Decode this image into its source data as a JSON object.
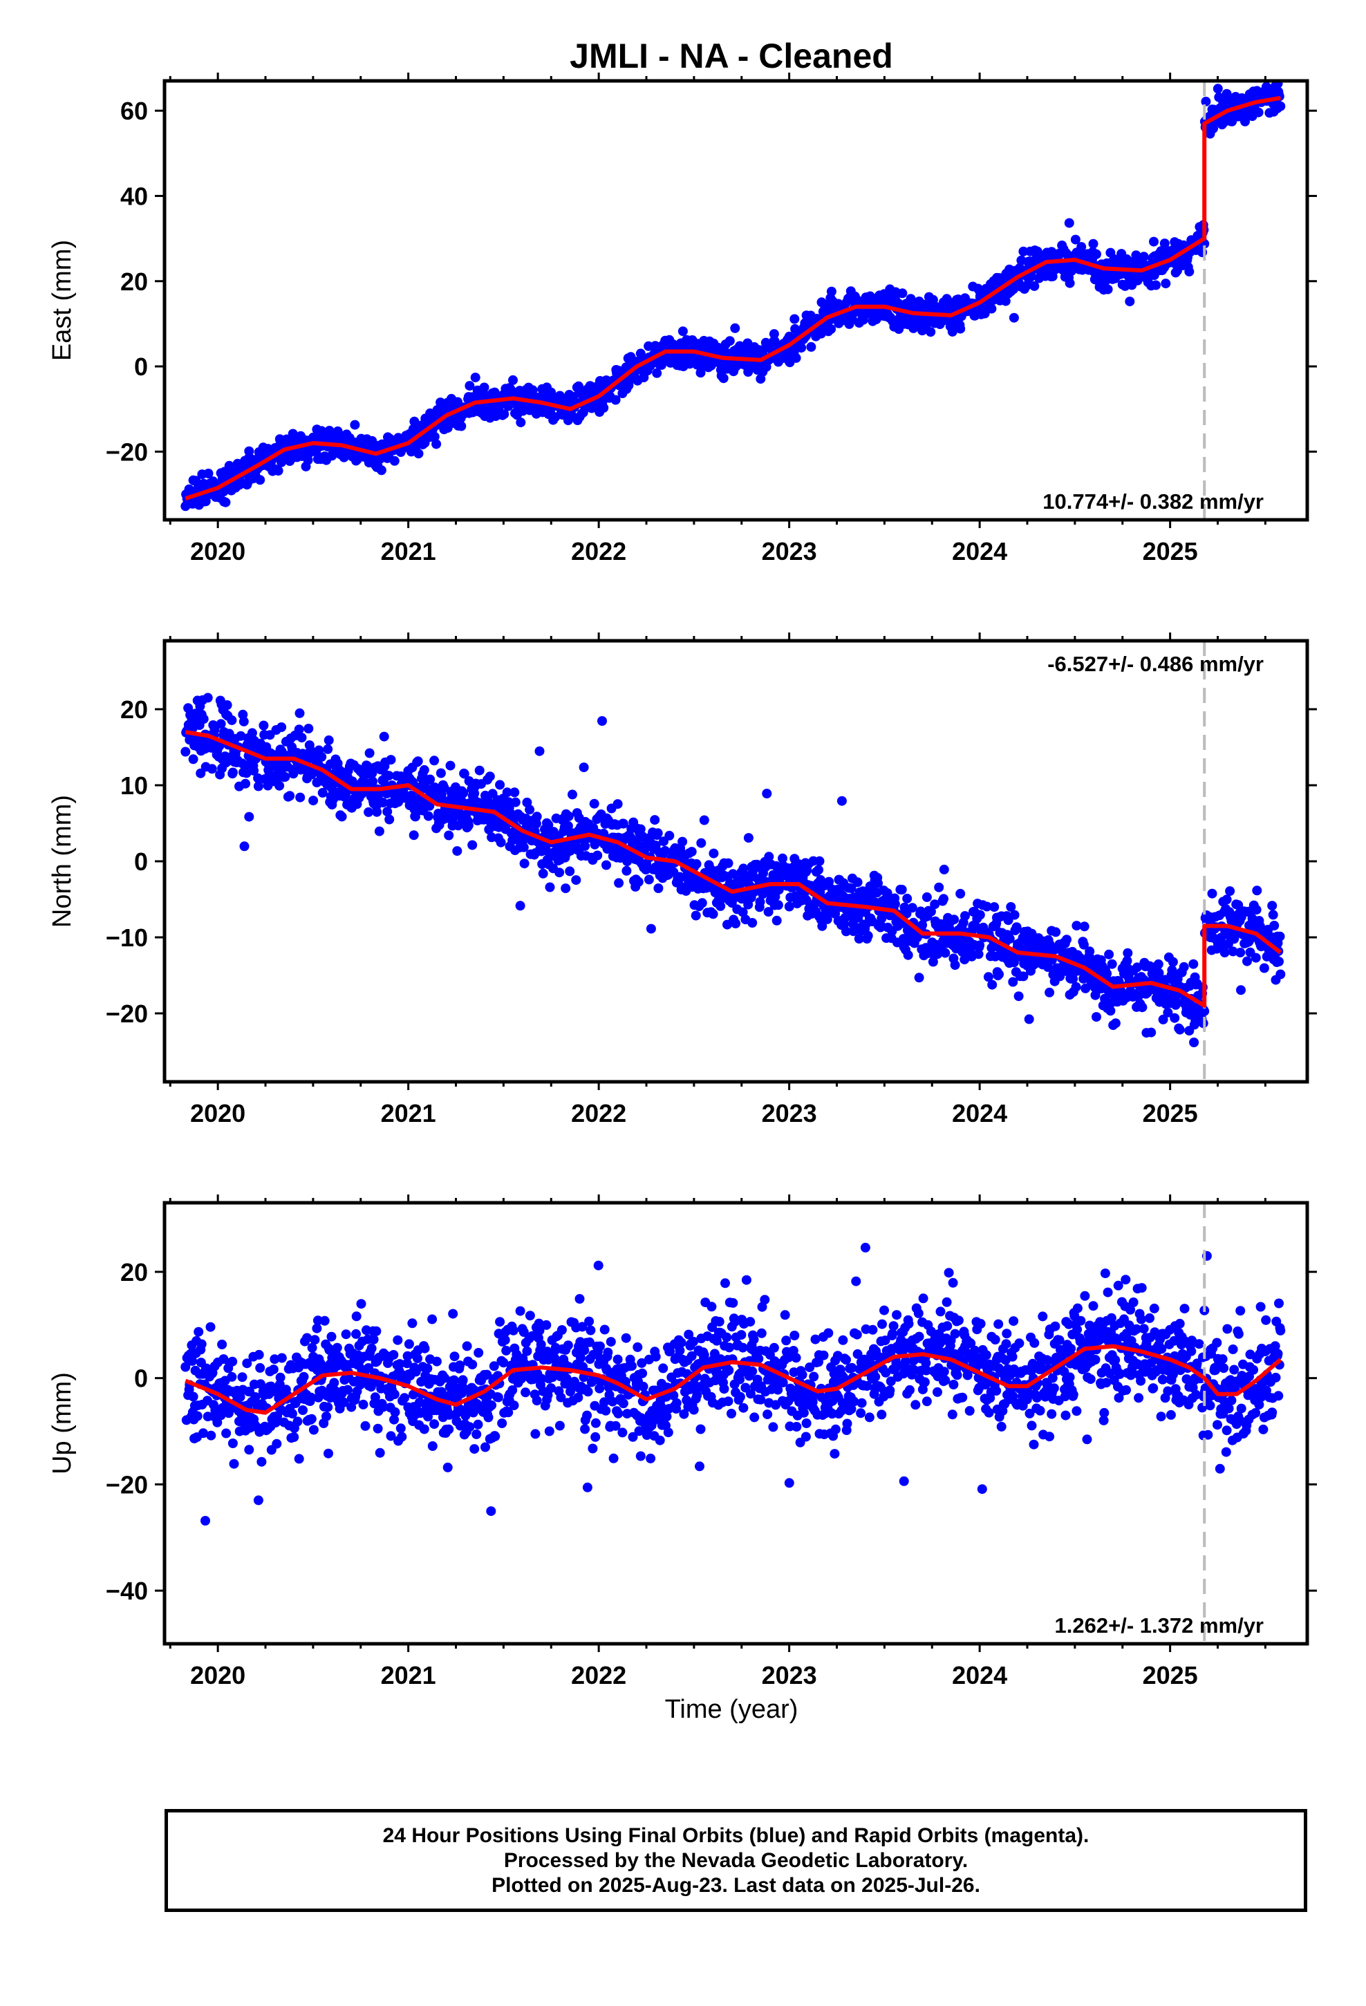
{
  "title": "JMLI  - NA - Cleaned",
  "x_axis_label": "Time (year)",
  "footer": {
    "line1": "24 Hour Positions Using Final Orbits (blue) and Rapid Orbits (magenta).",
    "line2": "Processed by the Nevada Geodetic Laboratory.",
    "line3": "Plotted on 2025-Aug-23. Last data on 2025-Jul-26."
  },
  "colors": {
    "data_points": "#0000ff",
    "model_fit": "#ff0000",
    "equipment_change_line": "#bbbbbb",
    "frame": "#000000"
  },
  "chart_data": [
    {
      "type": "scatter",
      "name": "east",
      "ylabel": "East (mm)",
      "xlim": [
        2019.72,
        2025.72
      ],
      "ylim": [
        -36,
        67
      ],
      "x_ticks": [
        2020,
        2021,
        2022,
        2023,
        2024,
        2025
      ],
      "x_tick_labels": [
        "2020",
        "2021",
        "2022",
        "2023",
        "2024",
        "2025"
      ],
      "y_ticks": [
        -20,
        0,
        20,
        40,
        60
      ],
      "y_tick_labels": [
        "−20",
        "0",
        "20",
        "40",
        "60"
      ],
      "rate_label": "10.774+/- 0.382 mm/yr",
      "rate_label_position": "bottom-right",
      "equipment_change_x": 2025.18,
      "fit": {
        "x": [
          2019.83,
          2020.0,
          2020.2,
          2020.35,
          2020.5,
          2020.65,
          2020.83,
          2021.0,
          2021.2,
          2021.35,
          2021.55,
          2021.7,
          2021.85,
          2022.0,
          2022.2,
          2022.35,
          2022.5,
          2022.65,
          2022.85,
          2023.0,
          2023.2,
          2023.35,
          2023.5,
          2023.65,
          2023.85,
          2024.0,
          2024.2,
          2024.35,
          2024.5,
          2024.65,
          2024.85,
          2025.0,
          2025.18,
          2025.18,
          2025.3,
          2025.45,
          2025.58
        ],
        "y": [
          -31,
          -28.5,
          -23.5,
          -19.5,
          -18,
          -18.5,
          -20.5,
          -18,
          -11.5,
          -8.5,
          -7.5,
          -8.5,
          -10,
          -7,
          0,
          3.5,
          3.5,
          2,
          1.5,
          5,
          11.5,
          14,
          14,
          12.5,
          12,
          15,
          21,
          24.5,
          25,
          23,
          22.5,
          25,
          30,
          57,
          60,
          62,
          63
        ]
      },
      "scatter_model": {
        "x_start": 2019.83,
        "x_end": 2025.58,
        "step_days": 1,
        "noise_sd": 1.9,
        "outlier_rate": 0.02,
        "outlier_sd": 5,
        "seed": 11
      }
    },
    {
      "type": "scatter",
      "name": "north",
      "ylabel": "North (mm)",
      "xlim": [
        2019.72,
        2025.72
      ],
      "ylim": [
        -29,
        29
      ],
      "x_ticks": [
        2020,
        2021,
        2022,
        2023,
        2024,
        2025
      ],
      "x_tick_labels": [
        "2020",
        "2021",
        "2022",
        "2023",
        "2024",
        "2025"
      ],
      "y_ticks": [
        -20,
        -10,
        0,
        10,
        20
      ],
      "y_tick_labels": [
        "−20",
        "−10",
        "0",
        "10",
        "20"
      ],
      "rate_label": "-6.527+/- 0.486 mm/yr",
      "rate_label_position": "top-right",
      "equipment_change_x": 2025.18,
      "fit": {
        "x": [
          2019.83,
          2019.95,
          2020.1,
          2020.25,
          2020.4,
          2020.55,
          2020.7,
          2020.85,
          2021.0,
          2021.15,
          2021.3,
          2021.45,
          2021.6,
          2021.75,
          2021.95,
          2022.1,
          2022.25,
          2022.4,
          2022.55,
          2022.7,
          2022.9,
          2023.05,
          2023.2,
          2023.4,
          2023.55,
          2023.7,
          2023.9,
          2024.05,
          2024.2,
          2024.4,
          2024.55,
          2024.7,
          2024.9,
          2025.05,
          2025.18,
          2025.18,
          2025.3,
          2025.45,
          2025.58
        ],
        "y": [
          17,
          16.5,
          15,
          13.5,
          13.5,
          12,
          9.5,
          9.5,
          10,
          7.5,
          7,
          6.5,
          4,
          2.5,
          3.5,
          2.5,
          0.5,
          0,
          -2,
          -4,
          -3,
          -3,
          -5.5,
          -6,
          -6.5,
          -9.5,
          -9.5,
          -10,
          -12,
          -12.5,
          -14,
          -16.5,
          -16,
          -17,
          -19,
          -8.5,
          -8.5,
          -9.5,
          -12
        ]
      },
      "scatter_model": {
        "x_start": 2019.83,
        "x_end": 2025.58,
        "step_days": 1,
        "noise_sd": 2.0,
        "outlier_rate": 0.025,
        "outlier_sd": 6,
        "seed": 23
      }
    },
    {
      "type": "scatter",
      "name": "up",
      "ylabel": "Up (mm)",
      "xlim": [
        2019.72,
        2025.72
      ],
      "ylim": [
        -50,
        33
      ],
      "x_ticks": [
        2020,
        2021,
        2022,
        2023,
        2024,
        2025
      ],
      "x_tick_labels": [
        "2020",
        "2021",
        "2022",
        "2023",
        "2024",
        "2025"
      ],
      "y_ticks": [
        -40,
        -20,
        0,
        20
      ],
      "y_tick_labels": [
        "−40",
        "−20",
        "0",
        "20"
      ],
      "rate_label": "1.262+/- 1.372 mm/yr",
      "rate_label_position": "bottom-right",
      "equipment_change_x": 2025.18,
      "fit": {
        "x": [
          2019.83,
          2020.0,
          2020.15,
          2020.25,
          2020.4,
          2020.55,
          2020.7,
          2020.85,
          2021.0,
          2021.15,
          2021.25,
          2021.4,
          2021.55,
          2021.7,
          2021.85,
          2022.0,
          2022.1,
          2022.25,
          2022.4,
          2022.55,
          2022.7,
          2022.85,
          2023.0,
          2023.15,
          2023.25,
          2023.4,
          2023.55,
          2023.7,
          2023.85,
          2024.0,
          2024.15,
          2024.25,
          2024.4,
          2024.55,
          2024.7,
          2024.85,
          2025.0,
          2025.1,
          2025.18,
          2025.25,
          2025.35,
          2025.45,
          2025.58
        ],
        "y": [
          -0.5,
          -3,
          -6,
          -6.5,
          -3,
          0.5,
          1,
          0,
          -1.5,
          -4,
          -5,
          -2.5,
          1.5,
          2,
          1.5,
          0.5,
          -1,
          -4,
          -2,
          2,
          3,
          2.5,
          0,
          -2.5,
          -2,
          1,
          4,
          4.5,
          3.5,
          1,
          -1.5,
          -1.5,
          2,
          5.5,
          6,
          5,
          3.5,
          2,
          0,
          -3,
          -3,
          -0.5,
          3.5
        ]
      },
      "scatter_model": {
        "x_start": 2019.83,
        "x_end": 2025.58,
        "step_days": 1,
        "noise_sd": 4.8,
        "outlier_rate": 0.02,
        "outlier_sd": 13,
        "seed": 37
      }
    }
  ]
}
